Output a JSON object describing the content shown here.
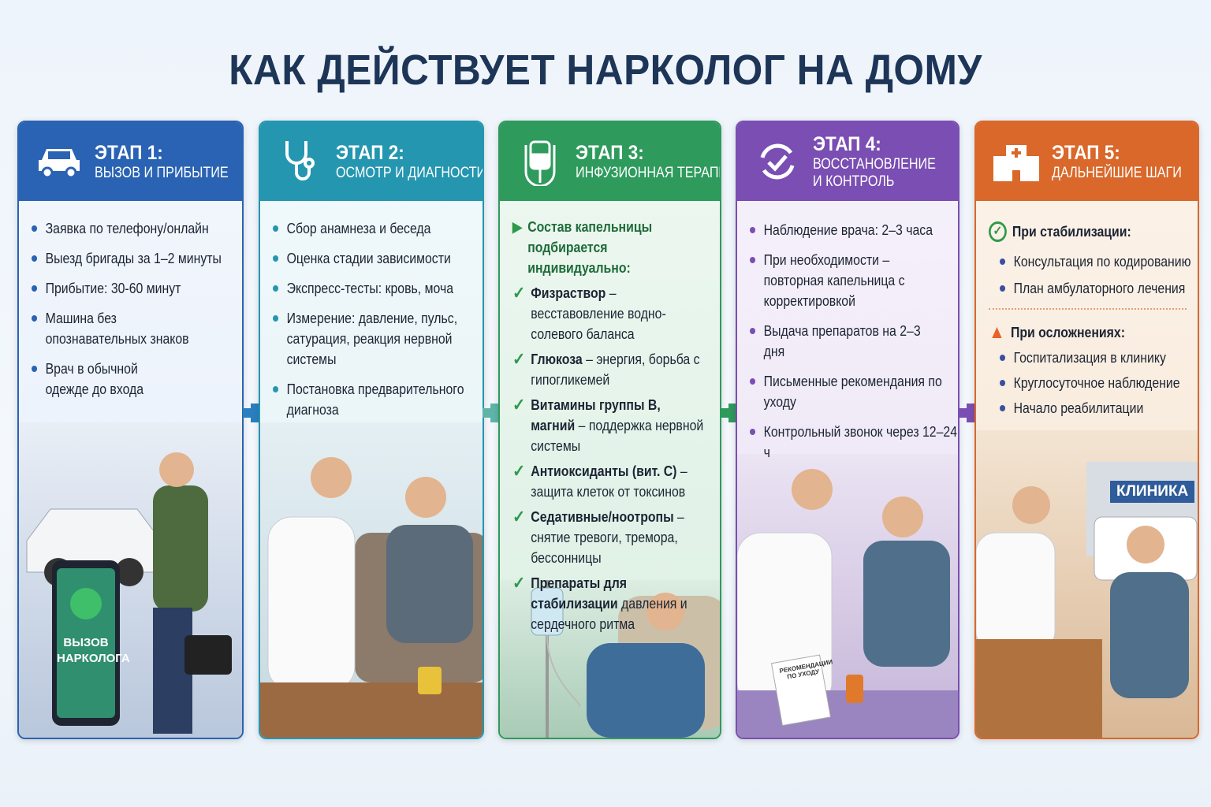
{
  "title": "КАК ДЕЙСТВУЕТ НАРКОЛОГ НА ДОМУ",
  "colors": {
    "stage1": "#2a63b3",
    "stage2": "#2496b0",
    "stage3": "#2e9a5c",
    "stage4": "#7a4eb2",
    "stage5": "#d9682a",
    "title": "#1d3557"
  },
  "stages": [
    {
      "stage": "ЭТАП 1:",
      "subtitle": "ВЫЗОВ И ПРИБЫТИЕ",
      "icon": "car-icon",
      "items": [
        "Заявка по телефону/онлайн",
        "Выезд бригады за 1–2 минуты",
        "Прибытие: 30-60 минут",
        "Машина без опознавательных знаков",
        "Врач в обычной одежде до входа"
      ],
      "illustration": {
        "phone_label": "ВЫЗОВ НАРКОЛОГА"
      }
    },
    {
      "stage": "ЭТАП 2:",
      "subtitle": "ОСМОТР И ДИАГНОСТИКА",
      "icon": "stethoscope-icon",
      "items": [
        "Сбор анамнеза и беседа",
        "Оценка стадии зависимости",
        "Экспресс-тесты: кровь, моча",
        "Измерение: давление, пульс, сатурация, реакция нервной системы",
        "Постановка предварительного диагноза"
      ]
    },
    {
      "stage": "ЭТАП 3:",
      "subtitle": "ИНФУЗИОННАЯ ТЕРАПИЯ",
      "icon": "iv-drip-icon",
      "intro": "Состав капельницы подбирается индивидуально:",
      "items": [
        {
          "bold": "Физраствор",
          "text": " – весставовление водно-солевого баланса"
        },
        {
          "bold": "Глюкоза",
          "text": " – энергия, борьба с гипогликемей"
        },
        {
          "bold": "Витамины группы В, магний",
          "text": " – поддержка нервной системы"
        },
        {
          "bold": "Антиоксиданты (вит. С)",
          "text": " – защита клеток от токсинов"
        },
        {
          "bold": "Седативные/ноотропы",
          "text": " – снятие тревоги, тремора, бессонницы"
        },
        {
          "bold": "Препараты для стабилизации",
          "text": " давления и сердечного ритма"
        }
      ]
    },
    {
      "stage": "ЭТАП 4:",
      "subtitle": "ВОССТАНОВЛЕНИЕ",
      "subtitle2": "И КОНТРОЛЬ",
      "icon": "recovery-check-icon",
      "items": [
        "Наблюдение врача: 2–3 часа",
        "При необходимости – повторная капельница с корректировкой",
        "Выдача препаратов на 2–3 дня",
        "Письменные рекомендания по уходу",
        "Контрольный звонок через 12–24 ч"
      ],
      "illustration": {
        "paper_label": "РЕКОМЕНДАЦИИ ПО УХОДУ"
      }
    },
    {
      "stage": "ЭТАП 5:",
      "subtitle": "ДАЛЬНЕЙШИЕ ШАГИ",
      "icon": "hospital-icon",
      "stable_heading": "При стабилизации:",
      "stable_items": [
        "Консультация по кодированию",
        "План амбулаторного лечения"
      ],
      "complication_heading": "При осложнениях:",
      "complication_items": [
        "Госпитализация в клинику",
        "Круглосуточное наблюдение",
        "Начало реабилитации"
      ],
      "illustration": {
        "sign_label": "КЛИНИКА"
      }
    }
  ]
}
